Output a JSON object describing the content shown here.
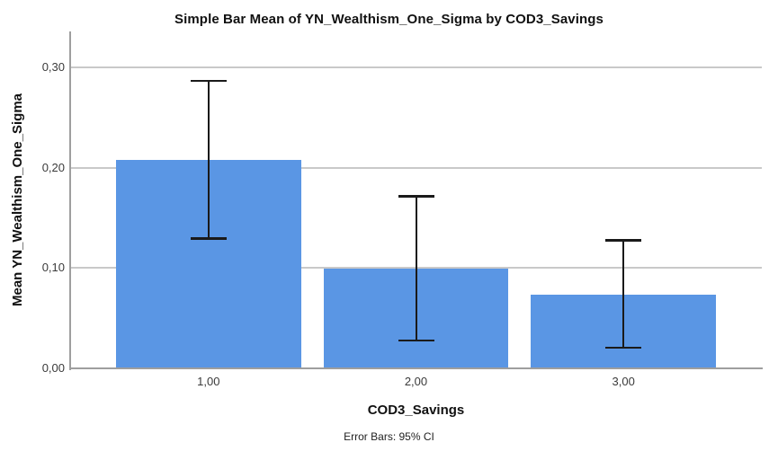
{
  "chart_data": {
    "type": "bar",
    "title": "Simple Bar Mean of YN_Wealthism_One_Sigma by COD3_Savings",
    "xlabel": "COD3_Savings",
    "ylabel": "Mean YN_Wealthism_One_Sigma",
    "footnote": "Error Bars: 95% CI",
    "categories": [
      "1,00",
      "2,00",
      "3,00"
    ],
    "values": [
      0.208,
      0.1,
      0.074
    ],
    "error_bars": {
      "kind": "95% CI",
      "upper": [
        0.287,
        0.172,
        0.128
      ],
      "lower": [
        0.13,
        0.028,
        0.021
      ]
    },
    "yticks": {
      "values": [
        0,
        0.1,
        0.2,
        0.3
      ],
      "labels": [
        "0,00",
        "0,10",
        "0,20",
        "0,30"
      ]
    },
    "ylim": [
      0,
      0.3363
    ],
    "grid": true,
    "legend": "none",
    "decimal_separator": ",",
    "colors": {
      "bar": "#5A96E4",
      "grid": "#C9C9C9",
      "axis": "#9E9E9E",
      "error_bar": "#1A1A1A",
      "background": "#FFFFFF"
    }
  }
}
